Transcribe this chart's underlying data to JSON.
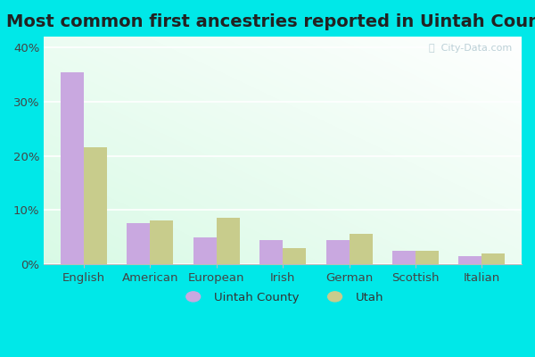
{
  "title": "Most common first ancestries reported in Uintah County",
  "categories": [
    "English",
    "American",
    "European",
    "Irish",
    "German",
    "Scottish",
    "Italian"
  ],
  "uintah_values": [
    35.5,
    7.5,
    5.0,
    4.5,
    4.5,
    2.5,
    1.5
  ],
  "utah_values": [
    21.5,
    8.0,
    8.5,
    3.0,
    5.5,
    2.5,
    2.0
  ],
  "uintah_color": "#c9a8e0",
  "utah_color": "#c8cc8c",
  "background_outer": "#00e8e8",
  "ylim": [
    0,
    42
  ],
  "yticks": [
    0,
    10,
    20,
    30,
    40
  ],
  "ytick_labels": [
    "0%",
    "10%",
    "20%",
    "30%",
    "40%"
  ],
  "title_fontsize": 14,
  "legend_label_uintah": "Uintah County",
  "legend_label_utah": "Utah",
  "watermark": "ⓘ  City-Data.com"
}
